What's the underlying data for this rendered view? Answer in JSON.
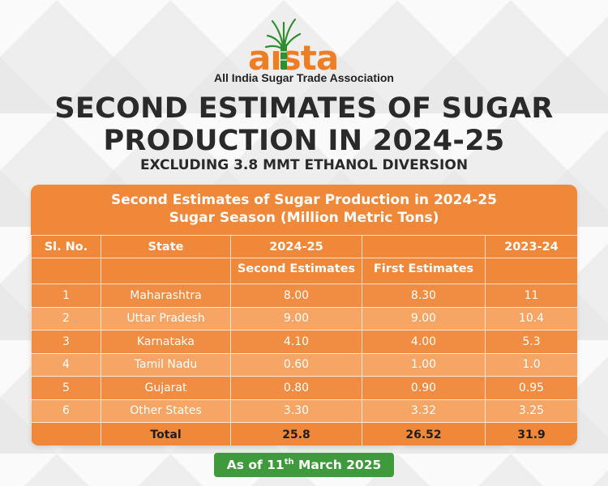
{
  "logo": {
    "wordmark": "aısta",
    "tagline": "All India Sugar Trade Association"
  },
  "title": "SECOND ESTIMATES OF SUGAR PRODUCTION IN 2024-25",
  "subtitle": "EXCLUDING 3.8 MMT ETHANOL DIVERSION",
  "table": {
    "caption_line1": "Second Estimates of Sugar Production in 2024-25",
    "caption_line2": "Sugar Season (Million Metric Tons)",
    "headers": {
      "sl_no": "Sl. No.",
      "state": "State",
      "season_2024_25": "2024-25",
      "season_2023_24": "2023-24",
      "second_estimates": "Second Estimates",
      "first_estimates": "First Estimates"
    },
    "rows": [
      {
        "sl": "1",
        "state": "Maharashtra",
        "second": "8.00",
        "first": "8.30",
        "prev": "11"
      },
      {
        "sl": "2",
        "state": "Uttar Pradesh",
        "second": "9.00",
        "first": "9.00",
        "prev": "10.4"
      },
      {
        "sl": "3",
        "state": "Karnataka",
        "second": "4.10",
        "first": "4.00",
        "prev": "5.3"
      },
      {
        "sl": "4",
        "state": "Tamil Nadu",
        "second": "0.60",
        "first": "1.00",
        "prev": "1.0"
      },
      {
        "sl": "5",
        "state": "Gujarat",
        "second": "0.80",
        "first": "0.90",
        "prev": "0.95"
      },
      {
        "sl": "6",
        "state": "Other States",
        "second": "3.30",
        "first": "3.32",
        "prev": "3.25"
      }
    ],
    "total": {
      "label": "Total",
      "second": "25.8",
      "first": "26.52",
      "prev": "31.9"
    }
  },
  "date_badge": {
    "prefix": "As of 11",
    "superscript": "th",
    "suffix": " March 2025"
  },
  "colors": {
    "accent_orange": "#f0883a",
    "brand_green": "#3f9a3c",
    "logo_orange": "#ef7d22",
    "text_dark": "#2a2a2a"
  }
}
